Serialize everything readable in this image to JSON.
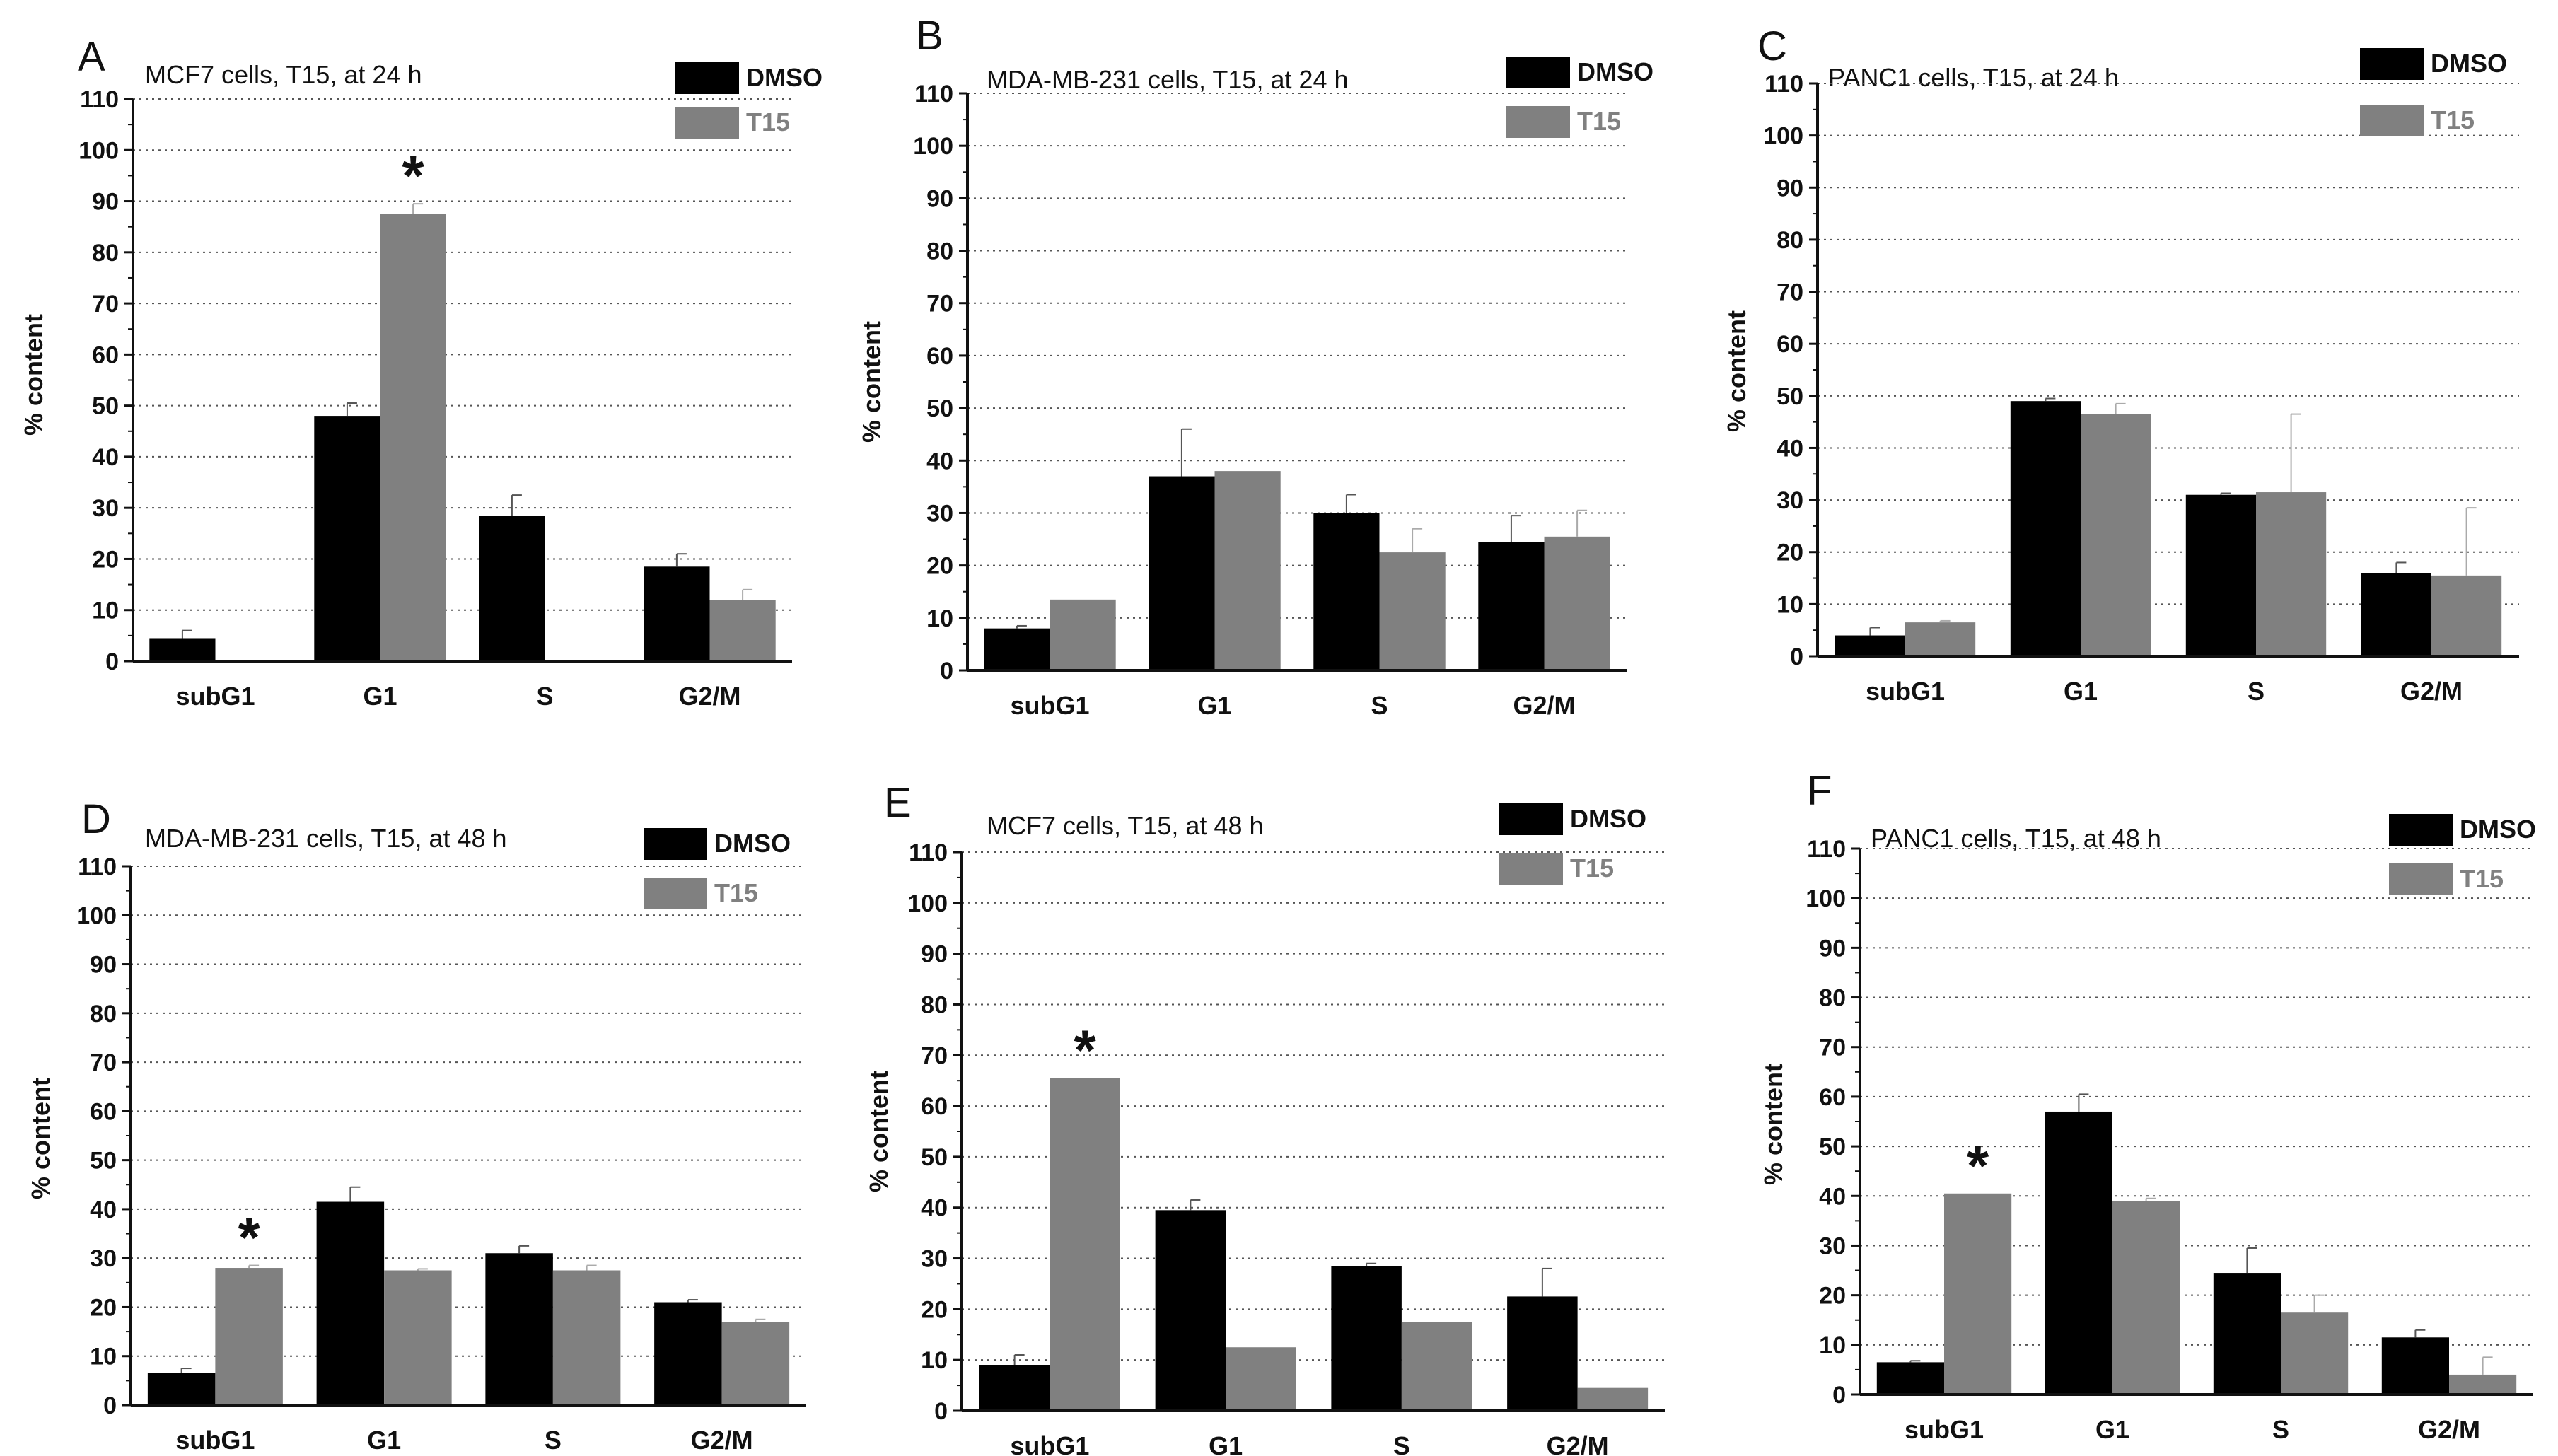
{
  "colors": {
    "dmso": "#000000",
    "t15": "#808080",
    "grid": "#555555",
    "axis": "#111111"
  },
  "chart_data": [
    {
      "type": "bar",
      "letter": "A",
      "title": "MCF7 cells, T15, at 24 h",
      "categories": [
        "subG1",
        "G1",
        "S",
        "G2/M"
      ],
      "series": [
        {
          "name": "DMSO",
          "values": [
            4.5,
            48,
            28.5,
            18.5
          ],
          "errors": [
            1.5,
            2.5,
            4,
            2.5
          ]
        },
        {
          "name": "T15",
          "values": [
            0,
            87.5,
            0,
            12
          ],
          "errors": [
            0,
            2,
            0,
            2
          ]
        }
      ],
      "significance": [
        "",
        "*",
        "",
        ""
      ],
      "xlabel": "",
      "ylabel": "% content",
      "ylim": [
        0,
        110
      ],
      "yticks": [
        0,
        10,
        20,
        30,
        40,
        50,
        60,
        70,
        80,
        90,
        100,
        110
      ],
      "grid": true,
      "legend": "top-right"
    },
    {
      "type": "bar",
      "letter": "B",
      "title": "MDA-MB-231 cells, T15, at 24 h",
      "categories": [
        "subG1",
        "G1",
        "S",
        "G2/M"
      ],
      "series": [
        {
          "name": "DMSO",
          "values": [
            8,
            37,
            30,
            24.5
          ],
          "errors": [
            0.5,
            9,
            3.5,
            5
          ]
        },
        {
          "name": "T15",
          "values": [
            13.5,
            38,
            22.5,
            25.5
          ],
          "errors": [
            0,
            0,
            4.5,
            5
          ]
        }
      ],
      "significance": [
        "",
        "",
        "",
        ""
      ],
      "xlabel": "",
      "ylabel": "% content",
      "ylim": [
        0,
        110
      ],
      "yticks": [
        0,
        10,
        20,
        30,
        40,
        50,
        60,
        70,
        80,
        90,
        100,
        110
      ],
      "grid": true,
      "legend": "top-right"
    },
    {
      "type": "bar",
      "letter": "C",
      "title": "PANC1 cells, T15, at 24 h",
      "categories": [
        "subG1",
        "G1",
        "S",
        "G2/M"
      ],
      "series": [
        {
          "name": "DMSO",
          "values": [
            4,
            49,
            31,
            16
          ],
          "errors": [
            1.5,
            0.5,
            0.3,
            2
          ]
        },
        {
          "name": "T15",
          "values": [
            6.5,
            46.5,
            31.5,
            15.5
          ],
          "errors": [
            0.3,
            2,
            15,
            13
          ]
        }
      ],
      "significance": [
        "",
        "",
        "",
        ""
      ],
      "xlabel": "",
      "ylabel": "% content",
      "ylim": [
        0,
        110
      ],
      "yticks": [
        0,
        10,
        20,
        30,
        40,
        50,
        60,
        70,
        80,
        90,
        100,
        110
      ],
      "grid": true,
      "legend": "top-right"
    },
    {
      "type": "bar",
      "letter": "D",
      "title": "MDA-MB-231 cells, T15, at 48 h",
      "categories": [
        "subG1",
        "G1",
        "S",
        "G2/M"
      ],
      "series": [
        {
          "name": "DMSO",
          "values": [
            6.5,
            41.5,
            31,
            21
          ],
          "errors": [
            1,
            3,
            1.5,
            0.5
          ]
        },
        {
          "name": "T15",
          "values": [
            28,
            27.5,
            27.5,
            17
          ],
          "errors": [
            0.5,
            0.3,
            1,
            0.5
          ]
        }
      ],
      "significance": [
        "*",
        "",
        "",
        ""
      ],
      "xlabel": "",
      "ylabel": "% content",
      "ylim": [
        0,
        110
      ],
      "yticks": [
        0,
        10,
        20,
        30,
        40,
        50,
        60,
        70,
        80,
        90,
        100,
        110
      ],
      "grid": true,
      "legend": "top-right"
    },
    {
      "type": "bar",
      "letter": "E",
      "title": "MCF7 cells, T15, at 48 h",
      "categories": [
        "subG1",
        "G1",
        "S",
        "G2/M"
      ],
      "series": [
        {
          "name": "DMSO",
          "values": [
            9,
            39.5,
            28.5,
            22.5
          ],
          "errors": [
            2,
            2,
            0.5,
            5.5
          ]
        },
        {
          "name": "T15",
          "values": [
            65.5,
            12.5,
            17.5,
            4.5
          ],
          "errors": [
            0,
            0,
            0,
            0
          ]
        }
      ],
      "significance": [
        "*",
        "",
        "",
        ""
      ],
      "xlabel": "",
      "ylabel": "% content",
      "ylim": [
        0,
        110
      ],
      "yticks": [
        0,
        10,
        20,
        30,
        40,
        50,
        60,
        70,
        80,
        90,
        100,
        110
      ],
      "grid": true,
      "legend": "top-right"
    },
    {
      "type": "bar",
      "letter": "F",
      "title": "PANC1 cells, T15, at 48 h",
      "categories": [
        "subG1",
        "G1",
        "S",
        "G2/M"
      ],
      "series": [
        {
          "name": "DMSO",
          "values": [
            6.5,
            57,
            24.5,
            11.5
          ],
          "errors": [
            0.3,
            3.5,
            5,
            1.5
          ]
        },
        {
          "name": "T15",
          "values": [
            40.5,
            39,
            16.5,
            4
          ],
          "errors": [
            0,
            0.5,
            3.5,
            3.5
          ]
        }
      ],
      "significance": [
        "*",
        "",
        "",
        ""
      ],
      "xlabel": "",
      "ylabel": "% content",
      "ylim": [
        0,
        110
      ],
      "yticks": [
        0,
        10,
        20,
        30,
        40,
        50,
        60,
        70,
        80,
        90,
        100,
        110
      ],
      "grid": true,
      "legend": "top-right"
    }
  ]
}
